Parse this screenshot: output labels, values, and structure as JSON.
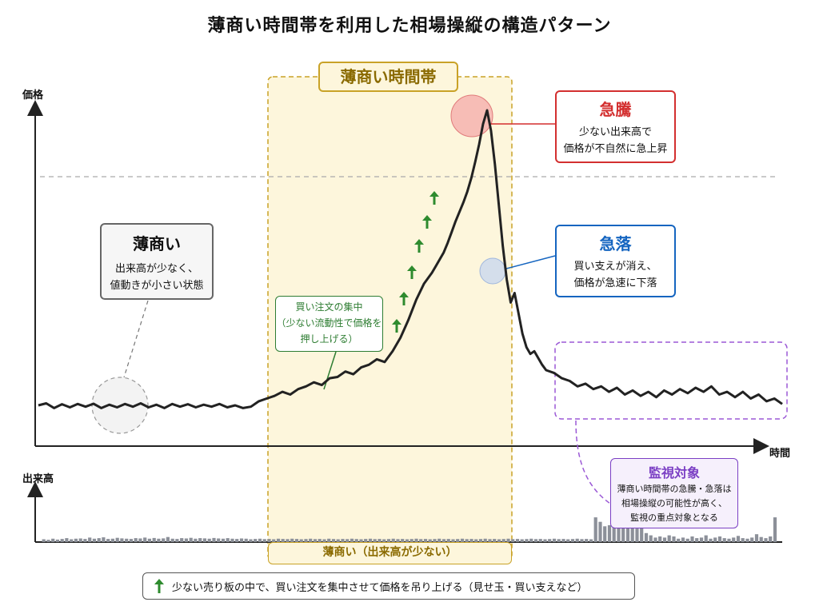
{
  "title": "薄商い時間帯を利用した相場操縦の構造パターン",
  "axes": {
    "price_label": "価格",
    "time_label": "時間",
    "volume_label": "出来高"
  },
  "zone": {
    "label": "薄商い時間帯",
    "bottom_label": "薄商い（出来高が少ない）",
    "fill_color": "#fdf6dc",
    "border_color": "#c9a227"
  },
  "callouts": {
    "thin": {
      "title": "薄商い",
      "lines": [
        "出来高が少なく、",
        "値動きが小さい状態"
      ],
      "color": "#555555"
    },
    "buy": {
      "lines": [
        "買い注文の集中",
        "（少ない流動性で価格を",
        "押し上げる）"
      ],
      "color": "#2e7d32"
    },
    "surge": {
      "title": "急騰",
      "lines": [
        "少ない出来高で",
        "価格が不自然に急上昇"
      ],
      "color": "#d32f2f"
    },
    "crash": {
      "title": "急落",
      "lines": [
        "買い支えが消え、",
        "価格が急速に下落"
      ],
      "color": "#1565c0"
    },
    "watch": {
      "title": "監視対象",
      "lines": [
        "薄商い時間帯の急騰・急落は",
        "相場操縦の可能性が高く、",
        "監視の重点対象となる"
      ],
      "color": "#7b3fc4"
    }
  },
  "legend": {
    "icon": "green-up-arrow-icon",
    "text": "少ない売り板の中で、買い注文を集中させて価格を吊り上げる（見せ玉・買い支えなど）"
  },
  "chart_data": {
    "type": "line",
    "price_series": [
      [
        0,
        0.92
      ],
      [
        2,
        0.935
      ],
      [
        4,
        0.9
      ],
      [
        6,
        0.928
      ],
      [
        8,
        0.905
      ],
      [
        10,
        0.93
      ],
      [
        12,
        0.91
      ],
      [
        14,
        0.932
      ],
      [
        16,
        0.9
      ],
      [
        18,
        0.925
      ],
      [
        20,
        0.905
      ],
      [
        22,
        0.93
      ],
      [
        24,
        0.91
      ],
      [
        26,
        0.935
      ],
      [
        28,
        0.905
      ],
      [
        30,
        0.925
      ],
      [
        32,
        0.9
      ],
      [
        34,
        0.93
      ],
      [
        36,
        0.91
      ],
      [
        38,
        0.928
      ],
      [
        40,
        0.905
      ],
      [
        42,
        0.925
      ],
      [
        44,
        0.91
      ],
      [
        46,
        0.93
      ],
      [
        48,
        0.905
      ],
      [
        50,
        0.92
      ],
      [
        52,
        0.9
      ],
      [
        54,
        0.91
      ],
      [
        56,
        0.95
      ],
      [
        58,
        0.97
      ],
      [
        60,
        0.99
      ],
      [
        62,
        1.02
      ],
      [
        64,
        1.0
      ],
      [
        66,
        1.04
      ],
      [
        68,
        1.06
      ],
      [
        70,
        1.09
      ],
      [
        72,
        1.07
      ],
      [
        74,
        1.12
      ],
      [
        76,
        1.13
      ],
      [
        78,
        1.17
      ],
      [
        80,
        1.15
      ],
      [
        82,
        1.2
      ],
      [
        84,
        1.22
      ],
      [
        86,
        1.26
      ],
      [
        88,
        1.24
      ],
      [
        90,
        1.32
      ],
      [
        92,
        1.42
      ],
      [
        94,
        1.55
      ],
      [
        96,
        1.7
      ],
      [
        98,
        1.82
      ],
      [
        100,
        1.9
      ],
      [
        101,
        1.95
      ],
      [
        102,
        2.0
      ],
      [
        103,
        2.05
      ],
      [
        104,
        2.12
      ],
      [
        105,
        2.2
      ],
      [
        106,
        2.28
      ],
      [
        107,
        2.35
      ],
      [
        108,
        2.42
      ],
      [
        109,
        2.5
      ],
      [
        110,
        2.6
      ],
      [
        111,
        2.72
      ],
      [
        112,
        2.85
      ],
      [
        113,
        3.0
      ],
      [
        114,
        3.1
      ],
      [
        115,
        2.95
      ],
      [
        116,
        2.7
      ],
      [
        117,
        2.4
      ],
      [
        118,
        2.1
      ],
      [
        119,
        1.85
      ],
      [
        120,
        1.68
      ],
      [
        121,
        1.75
      ],
      [
        122,
        1.6
      ],
      [
        123,
        1.45
      ],
      [
        124,
        1.35
      ],
      [
        125,
        1.3
      ],
      [
        126,
        1.32
      ],
      [
        127,
        1.27
      ],
      [
        128,
        1.22
      ],
      [
        129,
        1.18
      ],
      [
        131,
        1.16
      ],
      [
        133,
        1.12
      ],
      [
        135,
        1.1
      ],
      [
        137,
        1.06
      ],
      [
        139,
        1.08
      ],
      [
        141,
        1.04
      ],
      [
        143,
        1.06
      ],
      [
        145,
        1.02
      ],
      [
        147,
        1.05
      ],
      [
        149,
        1.0
      ],
      [
        151,
        1.03
      ],
      [
        153,
        0.99
      ],
      [
        155,
        1.02
      ],
      [
        157,
        0.98
      ],
      [
        159,
        1.03
      ],
      [
        161,
        1.0
      ],
      [
        163,
        1.04
      ],
      [
        165,
        1.01
      ],
      [
        167,
        1.05
      ],
      [
        169,
        1.02
      ],
      [
        171,
        1.06
      ],
      [
        173,
        1.0
      ],
      [
        175,
        1.02
      ],
      [
        177,
        0.98
      ],
      [
        179,
        1.02
      ],
      [
        181,
        0.97
      ],
      [
        183,
        1.0
      ],
      [
        185,
        0.95
      ],
      [
        187,
        0.97
      ],
      [
        189,
        0.93
      ]
    ],
    "price_reference_line": 2.45,
    "volume_bars": [
      0.25,
      0.2,
      0.3,
      0.22,
      0.28,
      0.35,
      0.25,
      0.3,
      0.32,
      0.28,
      0.4,
      0.3,
      0.35,
      0.42,
      0.28,
      0.3,
      0.38,
      0.33,
      0.3,
      0.28,
      0.35,
      0.32,
      0.4,
      0.3,
      0.36,
      0.3,
      0.33,
      0.45,
      0.3,
      0.28,
      0.35,
      0.32,
      0.38,
      0.3,
      0.35,
      0.33,
      0.3,
      0.36,
      0.32,
      0.3,
      0.35,
      0.3,
      0.28,
      0.32,
      0.3,
      0.25,
      0.28,
      0.3,
      0.26,
      0.28,
      0.25,
      0.3,
      0.28,
      0.26,
      0.3,
      0.28,
      0.25,
      0.27,
      0.3,
      0.26,
      0.28,
      0.25,
      0.3,
      0.27,
      0.25,
      0.28,
      0.26,
      0.3,
      0.27,
      0.25,
      0.28,
      0.3,
      0.26,
      0.28,
      0.25,
      0.27,
      0.3,
      0.26,
      0.28,
      0.25,
      0.27,
      0.3,
      0.26,
      0.28,
      0.25,
      0.27,
      0.3,
      0.26,
      0.28,
      0.25,
      0.27,
      0.3,
      0.26,
      0.28,
      0.25,
      0.27,
      0.3,
      0.26,
      0.28,
      0.25,
      0.27,
      0.3,
      0.26,
      0.28,
      0.25,
      0.27,
      0.3,
      0.26,
      0.28,
      0.25,
      0.27,
      0.3,
      0.26,
      0.28,
      0.25,
      0.27,
      0.3,
      0.26,
      0.28,
      0.25,
      2.2,
      1.8,
      1.4,
      1.5,
      1.9,
      2.6,
      1.6,
      3.0,
      3.7,
      1.2,
      1.7,
      0.8,
      0.6,
      0.4,
      0.5,
      0.4,
      0.6,
      0.5,
      0.3,
      0.4,
      0.3,
      0.5,
      0.35,
      0.4,
      0.6,
      0.3,
      0.4,
      0.5,
      0.35,
      0.3,
      0.4,
      0.55,
      0.35,
      0.3,
      0.4,
      0.7,
      0.45,
      0.35,
      0.5,
      2.2
    ]
  }
}
